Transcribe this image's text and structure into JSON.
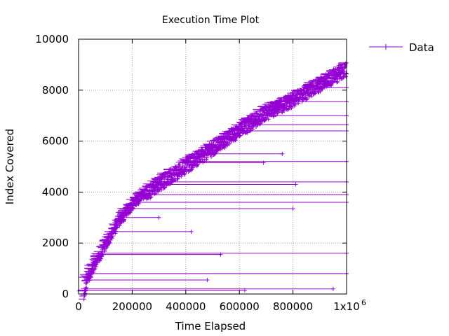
{
  "chart_data": {
    "type": "scatter",
    "title": "Execution Time Plot",
    "xlabel": "Time Elapsed",
    "ylabel": "Index Covered",
    "xlim": [
      0,
      1000000
    ],
    "ylim": [
      0,
      10000
    ],
    "xtick_values": [
      0,
      200000,
      400000,
      600000,
      800000,
      1000000
    ],
    "xtick_labels": [
      "0",
      "200000",
      "400000",
      "600000",
      "800000",
      "1x10"
    ],
    "x_multiplier_exponent": "6",
    "ytick_values": [
      0,
      2000,
      4000,
      6000,
      8000,
      10000
    ],
    "ytick_labels": [
      "0",
      "2000",
      "4000",
      "6000",
      "8000",
      "10000"
    ],
    "grid": true,
    "legend": "top-right",
    "marker": "plus",
    "series": [
      {
        "name": "Data",
        "color": "#9400d3",
        "trend": [
          {
            "x": 20000,
            "y": 0
          },
          {
            "x": 30000,
            "y": 700
          },
          {
            "x": 60000,
            "y": 1300
          },
          {
            "x": 100000,
            "y": 2100
          },
          {
            "x": 150000,
            "y": 3000
          },
          {
            "x": 200000,
            "y": 3700
          },
          {
            "x": 250000,
            "y": 4200
          },
          {
            "x": 300000,
            "y": 4600
          },
          {
            "x": 400000,
            "y": 5300
          },
          {
            "x": 500000,
            "y": 6000
          },
          {
            "x": 600000,
            "y": 6700
          },
          {
            "x": 700000,
            "y": 7400
          },
          {
            "x": 800000,
            "y": 7900
          },
          {
            "x": 900000,
            "y": 8500
          },
          {
            "x": 1000000,
            "y": 9100
          }
        ],
        "outliers": [
          {
            "x": 950000,
            "y": 200
          },
          {
            "x": 620000,
            "y": 150
          },
          {
            "x": 480000,
            "y": 550
          },
          {
            "x": 1000000,
            "y": 800
          },
          {
            "x": 530000,
            "y": 1550
          },
          {
            "x": 1000000,
            "y": 1600
          },
          {
            "x": 420000,
            "y": 2450
          },
          {
            "x": 300000,
            "y": 3000
          },
          {
            "x": 800000,
            "y": 3350
          },
          {
            "x": 1000000,
            "y": 3600
          },
          {
            "x": 1000000,
            "y": 3900
          },
          {
            "x": 810000,
            "y": 4300
          },
          {
            "x": 1000000,
            "y": 4400
          },
          {
            "x": 690000,
            "y": 5150
          },
          {
            "x": 1000000,
            "y": 5200
          },
          {
            "x": 760000,
            "y": 5500
          },
          {
            "x": 1000000,
            "y": 6400
          },
          {
            "x": 1000000,
            "y": 6650
          },
          {
            "x": 1000000,
            "y": 7000
          },
          {
            "x": 1000000,
            "y": 7550
          },
          {
            "x": 1000000,
            "y": 8100
          }
        ]
      }
    ]
  }
}
